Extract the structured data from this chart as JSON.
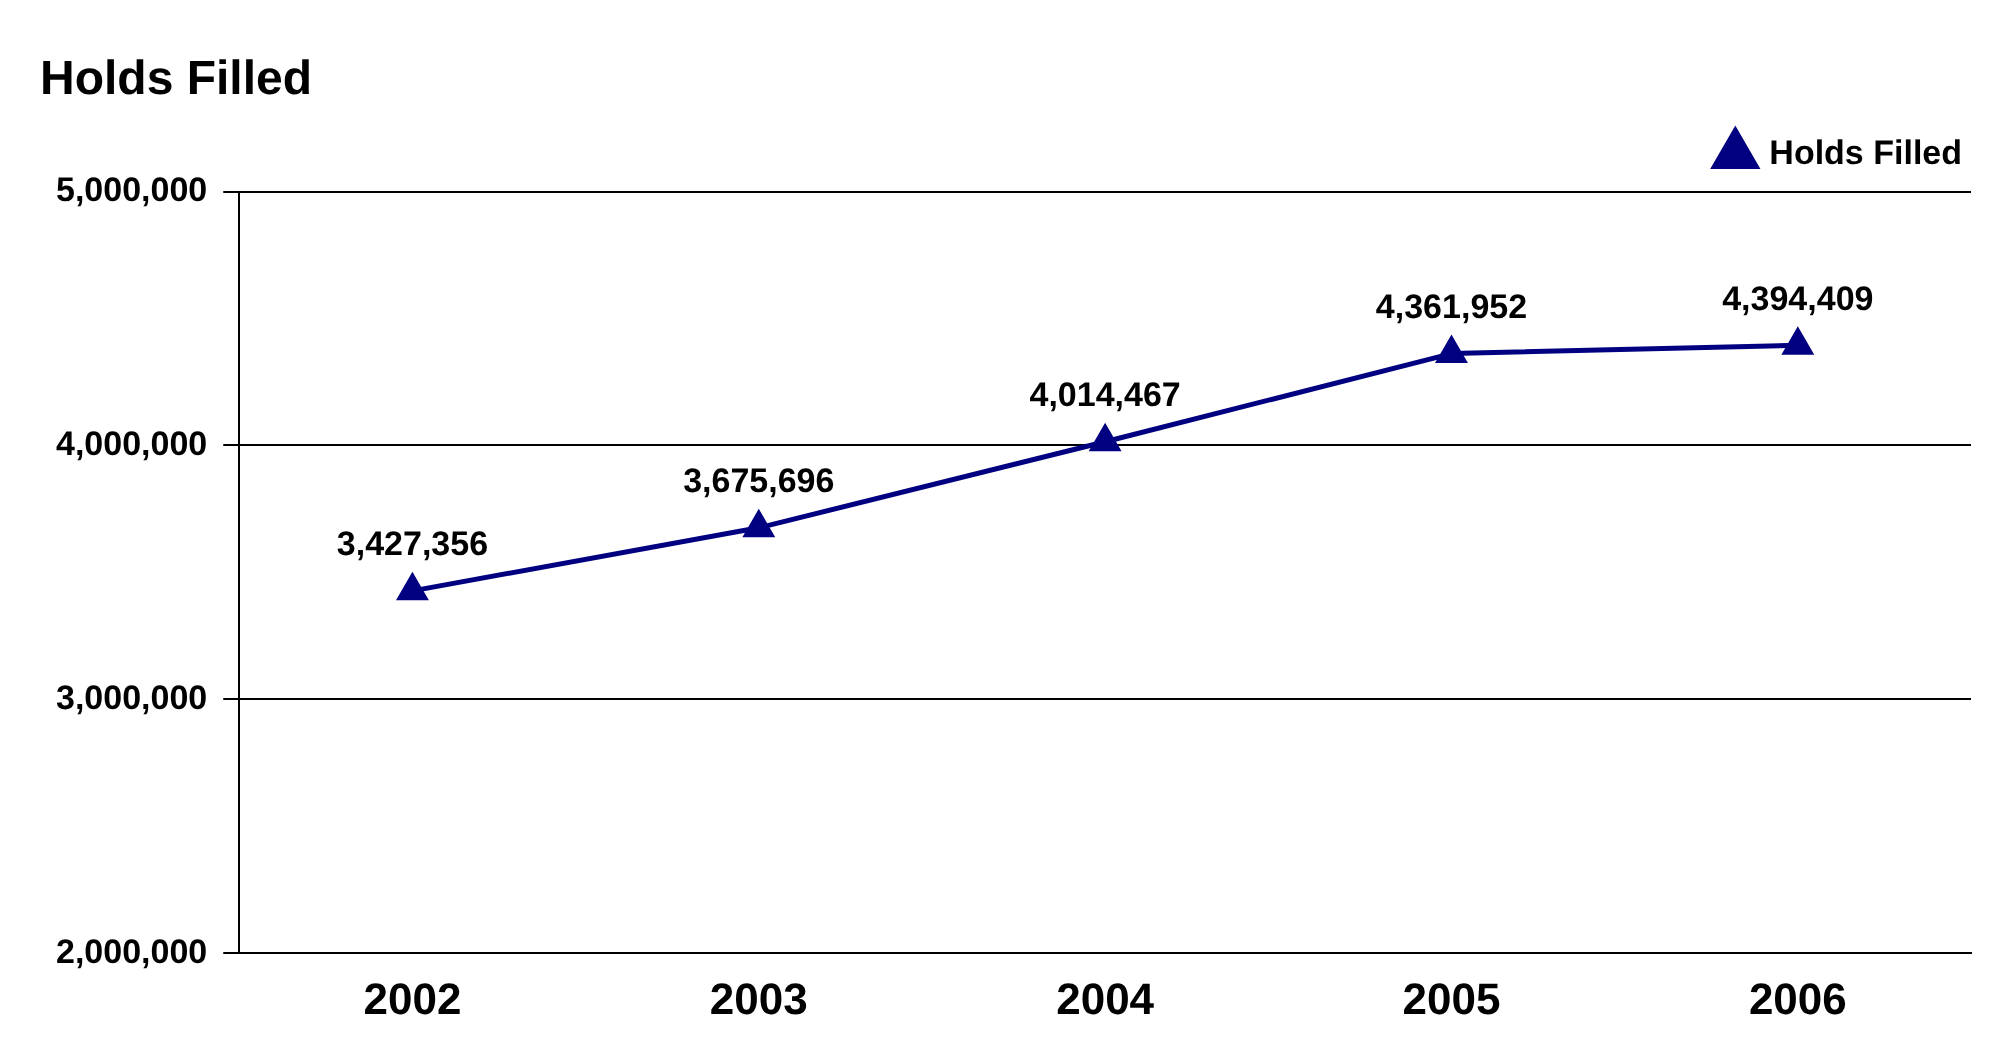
{
  "chart_data": {
    "type": "line",
    "title": "Holds Filled",
    "categories": [
      "2002",
      "2003",
      "2004",
      "2005",
      "2006"
    ],
    "series": [
      {
        "name": "Holds Filled",
        "color": "#000080",
        "values": [
          3427356,
          3675696,
          4014467,
          4361952,
          4394409
        ],
        "value_labels": [
          "3,427,356",
          "3,675,696",
          "4,014,467",
          "4,361,952",
          "4,394,409"
        ]
      }
    ],
    "ylim": [
      2000000,
      5000000
    ],
    "yticks": [
      {
        "value": 2000000,
        "label": "2,000,000"
      },
      {
        "value": 3000000,
        "label": "3,000,000"
      },
      {
        "value": 4000000,
        "label": "4,000,000"
      },
      {
        "value": 5000000,
        "label": "5,000,000"
      }
    ],
    "grid": "y",
    "legend": "top right",
    "marker": "triangle",
    "line_style": "solid"
  }
}
